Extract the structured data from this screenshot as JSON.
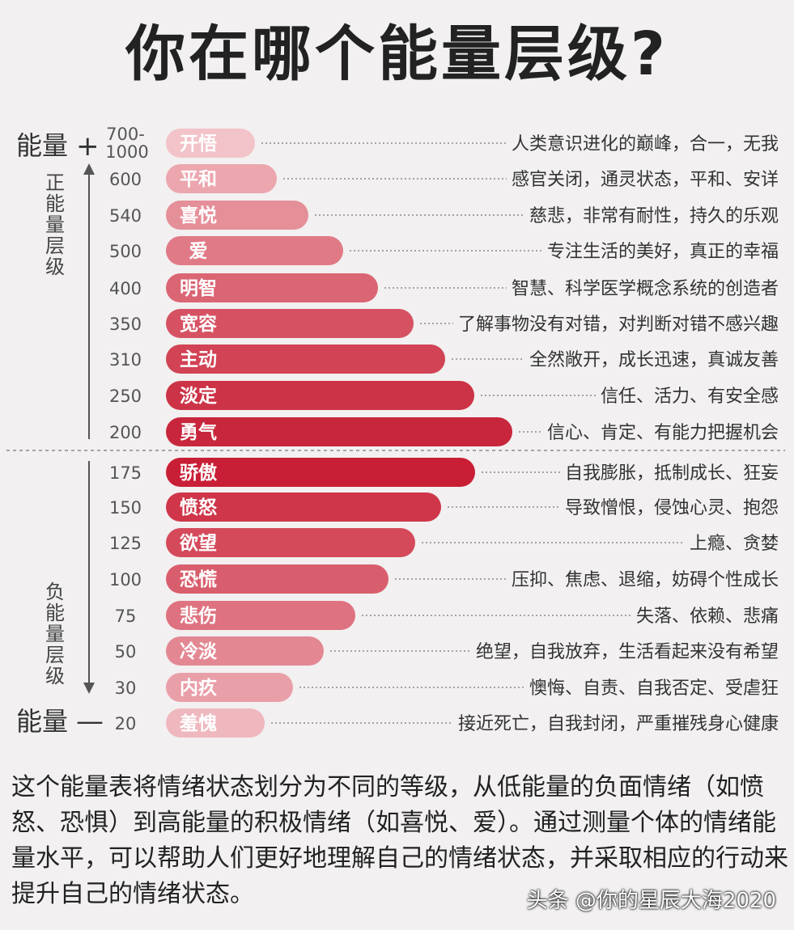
{
  "title": "你在哪个能量层级?",
  "top_energy_label": "能量",
  "top_energy_sign": "+",
  "bottom_energy_label": "能量",
  "bottom_energy_sign": "—",
  "positive_side_label": "正能量层级",
  "negative_side_label": "负能量层级",
  "summary": "这个能量表将情绪状态划分为不同的等级，从低能量的负面情绪（如愤怒、恐惧）到高能量的积极情绪（如喜悦、爱）。通过测量个体的情绪能量水平，可以帮助人们更好地理解自己的情绪状态，并采取相应的行动来提升自己的情绪状态。",
  "watermark": "头条 @你的星辰大海2020",
  "chart_data": {
    "type": "bar",
    "orientation": "horizontal",
    "levels": [
      {
        "value_label": "700-1000",
        "label": "开悟",
        "description": "人类意识进化的巅峰，合一，无我",
        "color": "#f2c3c8"
      },
      {
        "value_label": "600",
        "label": "平和",
        "description": "感官关闭，通灵状态，平和、安详",
        "color": "#eca6ae"
      },
      {
        "value_label": "540",
        "label": "喜悦",
        "description": "慈悲，非常有耐性，持久的乐观",
        "color": "#e58f99"
      },
      {
        "value_label": "500",
        "label": "爱",
        "description": "专注生活的美好，真正的幸福",
        "color": "#e07a86"
      },
      {
        "value_label": "400",
        "label": "明智",
        "description": "智慧、科学医学概念系统的创造者",
        "color": "#da6573"
      },
      {
        "value_label": "350",
        "label": "宽容",
        "description": "了解事物没有对错，对判断对错不感兴趣",
        "color": "#d65263"
      },
      {
        "value_label": "310",
        "label": "主动",
        "description": "全然敞开，成长迅速，真诚友善",
        "color": "#d14355"
      },
      {
        "value_label": "250",
        "label": "淡定",
        "description": "信任、活力、有安全感",
        "color": "#cc3347"
      },
      {
        "value_label": "200",
        "label": "勇气",
        "description": "信心、肯定、有能力把握机会",
        "color": "#c8263c"
      },
      {
        "value_label": "175",
        "label": "骄傲",
        "description": "自我膨胀，抵制成长、狂妄",
        "color": "#c91f36"
      },
      {
        "value_label": "150",
        "label": "愤怒",
        "description": "导致憎恨，侵蚀心灵、抱怨",
        "color": "#cf3649"
      },
      {
        "value_label": "125",
        "label": "欲望",
        "description": "上瘾、贪婪",
        "color": "#d44a5b"
      },
      {
        "value_label": "100",
        "label": "恐慌",
        "description": "压抑、焦虑、退缩，妨碍个性成长",
        "color": "#d95e6d"
      },
      {
        "value_label": "75",
        "label": "悲伤",
        "description": "失落、依赖、悲痛",
        "color": "#de7280"
      },
      {
        "value_label": "50",
        "label": "冷淡",
        "description": "绝望，自我放弃，生活看起来没有希望",
        "color": "#e38893"
      },
      {
        "value_label": "30",
        "label": "内疚",
        "description": "懊悔、自责、自我否定、受虐狂",
        "color": "#e99fa8"
      },
      {
        "value_label": "20",
        "label": "羞愧",
        "description": "接近死亡，自我封闭，严重摧残身心健康",
        "color": "#efb8be"
      }
    ]
  }
}
